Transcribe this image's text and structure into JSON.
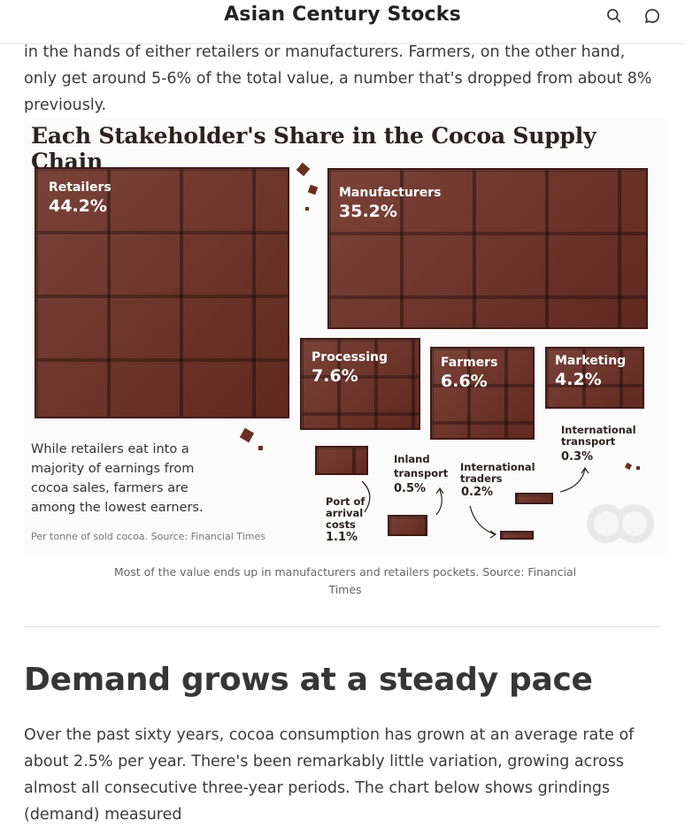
{
  "header": {
    "site_title": "Asian Century Stocks",
    "search_icon": "search-icon",
    "comment_icon": "comment-icon"
  },
  "intro_text": "in the hands of either retailers or manufacturers. Farmers, on the other hand, only get around 5-6% of the total value, a number that's dropped from about 8% previously.",
  "infographic": {
    "title": "Each Stakeholder's Share in the Cocoa Supply Chain",
    "colors": {
      "chocolate": "#6b2d22",
      "chocolate_dark": "#3f1812"
    },
    "shares": [
      {
        "name": "Retailers",
        "percent": "44.2%"
      },
      {
        "name": "Manufacturers",
        "percent": "35.2%"
      },
      {
        "name": "Processing",
        "percent": "7.6%"
      },
      {
        "name": "Farmers",
        "percent": "6.6%"
      },
      {
        "name": "Marketing",
        "percent": "4.2%"
      }
    ],
    "small_shares": [
      {
        "name": "Port of arrival costs",
        "name_lines": [
          "Port of",
          "arrival",
          "costs"
        ],
        "percent": "1.1%"
      },
      {
        "name": "Inland transport",
        "name_lines": [
          "Inland",
          "transport"
        ],
        "percent": "0.5%"
      },
      {
        "name": "International traders",
        "name_lines": [
          "International",
          "traders"
        ],
        "percent": "0.2%"
      },
      {
        "name": "International transport",
        "name_lines": [
          "International",
          "transport"
        ],
        "percent": "0.3%"
      }
    ],
    "note": "While retailers eat into a majority of earnings from cocoa sales, farmers are among the lowest earners.",
    "source": "Per tonne of sold cocoa. Source: Financial Times"
  },
  "caption": "Most of the value ends up in manufacturers and retailers pockets. Source: Financial Times",
  "section_heading": "Demand grows at a steady pace",
  "body_text": "Over the past sixty years, cocoa consumption has grown at an average rate of about 2.5% per year. There's been remarkably little variation, growing across almost all consecutive three-year periods. The chart below shows grindings (demand) measured"
}
